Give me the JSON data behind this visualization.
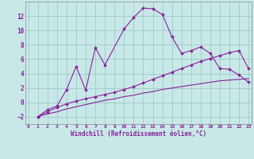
{
  "bg_color": "#c8e8e8",
  "grid_color": "#a0c8c8",
  "line_color": "#882299",
  "line1_x": [
    1,
    2,
    3,
    4,
    5,
    6,
    7,
    8,
    10,
    11,
    12,
    13,
    14,
    15,
    16,
    17,
    18,
    19,
    20,
    21,
    22,
    23
  ],
  "line1_y": [
    -2.0,
    -1.0,
    -0.5,
    1.8,
    5.0,
    1.7,
    7.6,
    5.2,
    10.2,
    11.8,
    13.1,
    13.0,
    12.2,
    9.1,
    6.8,
    7.2,
    7.7,
    6.8,
    4.7,
    4.6,
    3.8,
    2.8
  ],
  "line2_x": [
    1,
    2,
    3,
    4,
    5,
    6,
    7,
    8,
    9,
    10,
    11,
    12,
    13,
    14,
    15,
    16,
    17,
    18,
    19,
    20,
    21,
    22,
    23
  ],
  "line2_y": [
    -2.0,
    -1.3,
    -0.7,
    -0.2,
    0.2,
    0.5,
    0.8,
    1.1,
    1.4,
    1.8,
    2.2,
    2.7,
    3.2,
    3.7,
    4.2,
    4.7,
    5.2,
    5.7,
    6.1,
    6.5,
    6.9,
    7.2,
    4.7
  ],
  "line3_x": [
    1,
    2,
    3,
    4,
    5,
    6,
    7,
    8,
    9,
    10,
    11,
    12,
    13,
    14,
    15,
    16,
    17,
    18,
    19,
    20,
    21,
    22,
    23
  ],
  "line3_y": [
    -2.0,
    -1.6,
    -1.3,
    -0.9,
    -0.6,
    -0.3,
    0.0,
    0.3,
    0.5,
    0.8,
    1.0,
    1.3,
    1.5,
    1.8,
    2.0,
    2.2,
    2.4,
    2.6,
    2.8,
    3.0,
    3.1,
    3.2,
    3.3
  ],
  "xlim": [
    -0.3,
    23.3
  ],
  "ylim": [
    -3.0,
    14.0
  ],
  "yticks": [
    -2,
    0,
    2,
    4,
    6,
    8,
    10,
    12
  ],
  "xticks": [
    0,
    1,
    2,
    3,
    4,
    5,
    6,
    7,
    8,
    9,
    10,
    11,
    12,
    13,
    14,
    15,
    16,
    17,
    18,
    19,
    20,
    21,
    22,
    23
  ],
  "xlabel": "Windchill (Refroidissement éolien,°C)"
}
